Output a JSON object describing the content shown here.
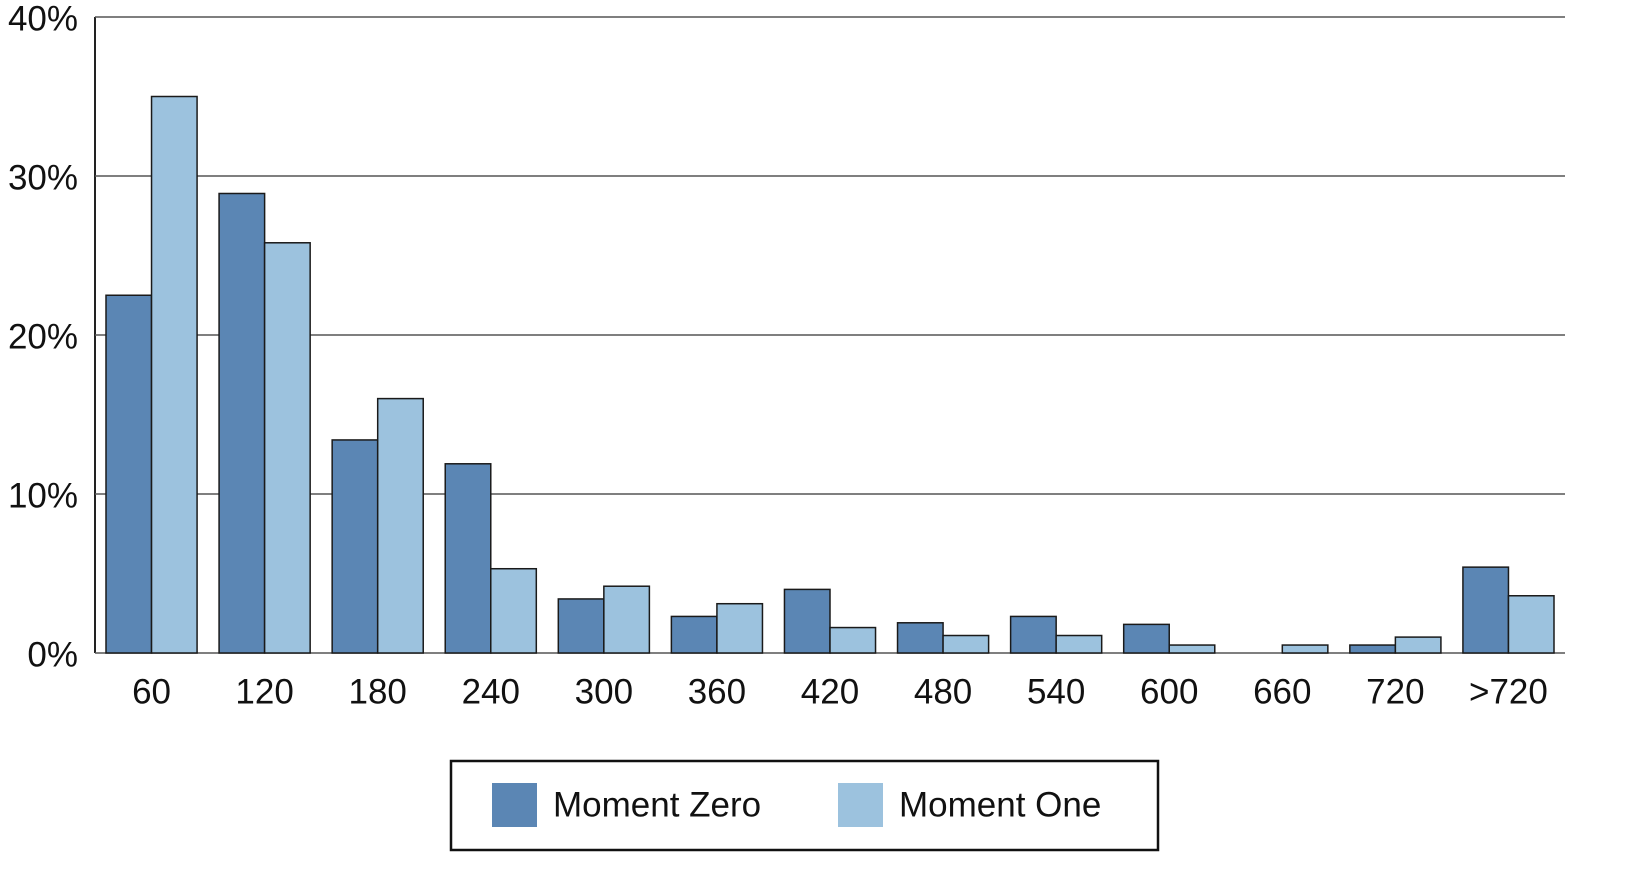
{
  "chart_data": {
    "type": "bar",
    "categories": [
      "60",
      "120",
      "180",
      "240",
      "300",
      "360",
      "420",
      "480",
      "540",
      "600",
      "660",
      "720",
      ">720"
    ],
    "series": [
      {
        "name": "Moment Zero",
        "color": "#5b86b4",
        "values": [
          22.5,
          28.9,
          13.4,
          11.9,
          3.4,
          2.3,
          4.0,
          1.9,
          2.3,
          1.8,
          0,
          0.5,
          5.4
        ]
      },
      {
        "name": "Moment One",
        "color": "#9cc2de",
        "values": [
          35.0,
          25.8,
          16.0,
          5.3,
          4.2,
          3.1,
          1.6,
          1.1,
          1.1,
          0.5,
          0.5,
          1.0,
          3.6
        ]
      }
    ],
    "ylim": [
      0,
      40
    ],
    "yticks": [
      {
        "value": 0,
        "label": "0%"
      },
      {
        "value": 10,
        "label": "10%"
      },
      {
        "value": 20,
        "label": "20%"
      },
      {
        "value": 30,
        "label": "30%"
      },
      {
        "value": 40,
        "label": "40%"
      }
    ],
    "grid": true
  }
}
